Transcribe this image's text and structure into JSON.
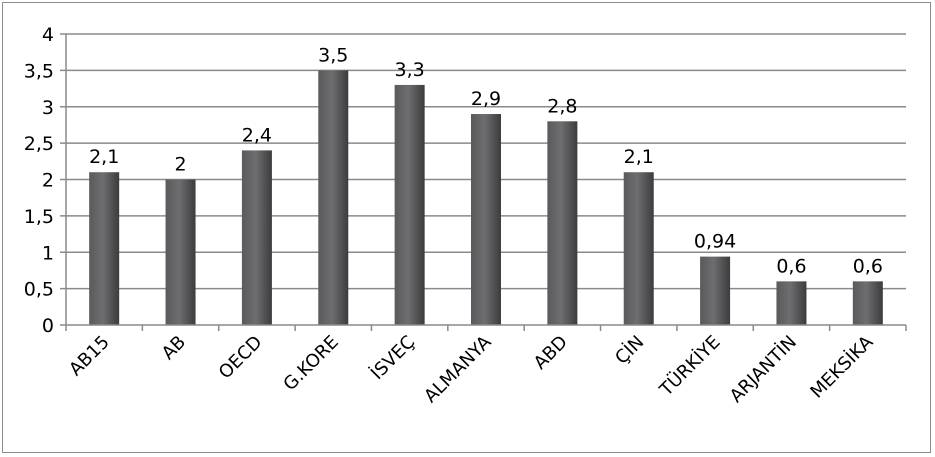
{
  "chart_data": {
    "type": "bar",
    "title": "",
    "xlabel": "",
    "ylabel": "",
    "categories": [
      "AB15",
      "AB",
      "OECD",
      "G.KORE",
      "İSVEÇ",
      "ALMANYA",
      "ABD",
      "ÇİN",
      "TÜRKİYE",
      "ARJANTİN",
      "MEKSİKA"
    ],
    "values": [
      2.1,
      2,
      2.4,
      3.5,
      3.3,
      2.9,
      2.8,
      2.1,
      0.94,
      0.6,
      0.6
    ],
    "value_labels": [
      "2,1",
      "2",
      "2,4",
      "3,5",
      "3,3",
      "2,9",
      "2,8",
      "2,1",
      "0,94",
      "0,6",
      "0,6"
    ],
    "ylim": [
      0,
      4
    ],
    "y_ticks": [
      0,
      0.5,
      1,
      1.5,
      2,
      2.5,
      3,
      3.5,
      4
    ],
    "y_tick_labels": [
      "0",
      "0,5",
      "1",
      "1,5",
      "2",
      "2,5",
      "3",
      "3,5",
      "4"
    ],
    "grid": true,
    "legend": "none",
    "colors": {
      "bar_dark": "#3c3c3e",
      "bar_mid": "#5a5a5d",
      "bar_light": "#6e6e71",
      "grid": "#8a8a8a",
      "axis": "#8a8a8a"
    }
  }
}
